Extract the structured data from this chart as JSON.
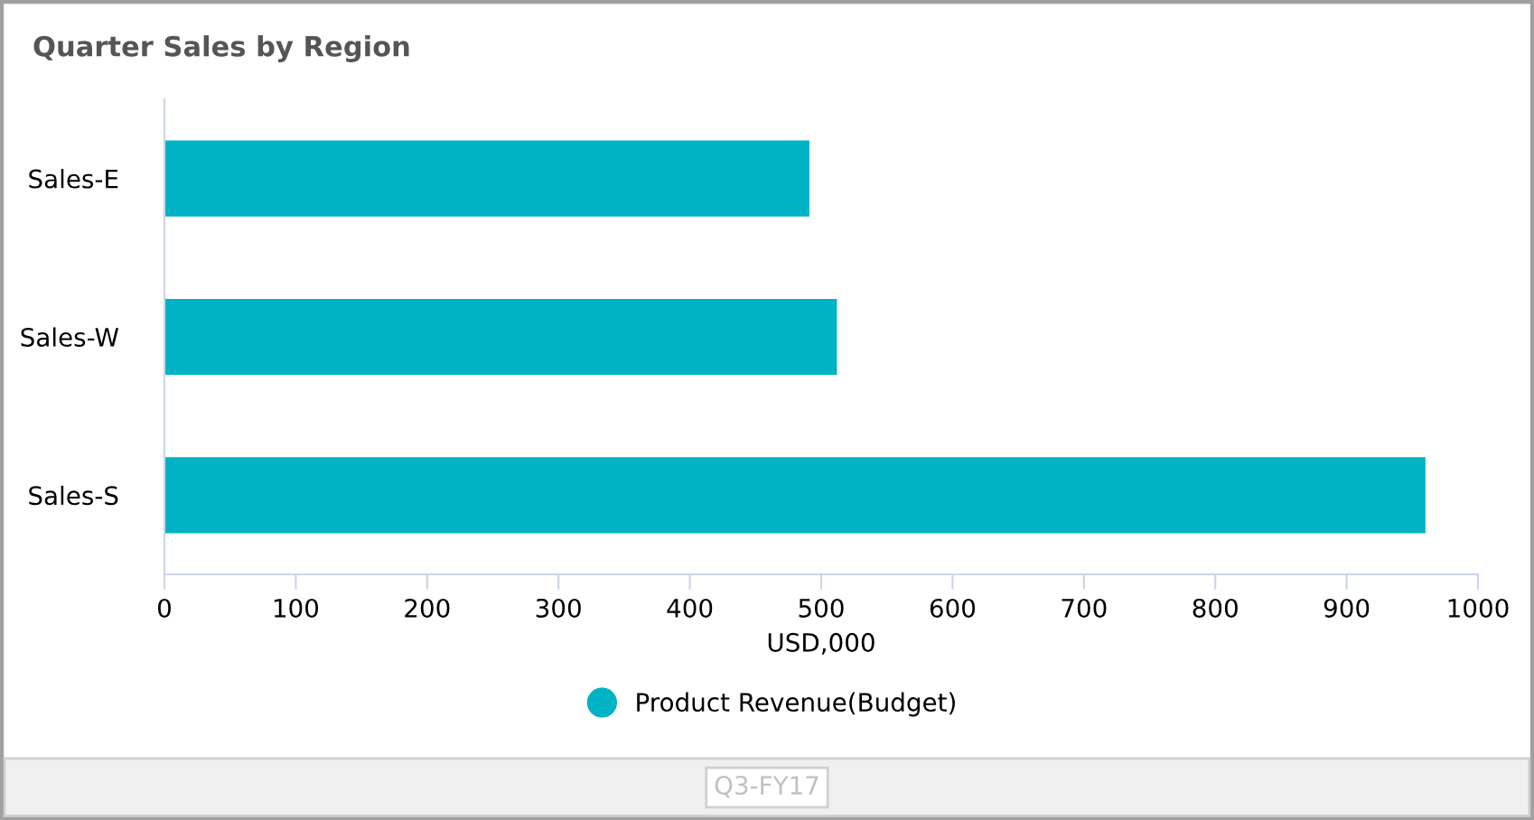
{
  "chart_data": {
    "type": "bar",
    "orientation": "horizontal",
    "title": "Quarter Sales by Region",
    "xlabel": "USD,000",
    "categories": [
      "Sales-E",
      "Sales-W",
      "Sales-S"
    ],
    "series": [
      {
        "name": "Product Revenue(Budget)",
        "color": "#00b3c4",
        "values": [
          491,
          512,
          960
        ]
      }
    ],
    "xlim": [
      0,
      1000
    ],
    "xticks": [
      0,
      100,
      200,
      300,
      400,
      500,
      600,
      700,
      800,
      900,
      1000
    ],
    "grid": false,
    "legend": "bottom",
    "annotations": [
      "Q3-FY17"
    ]
  }
}
